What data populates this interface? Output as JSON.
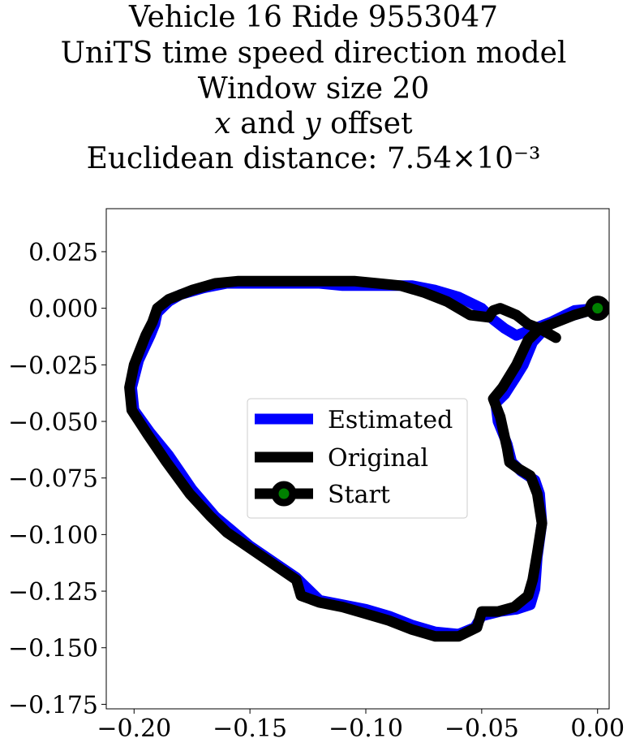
{
  "chart_data": {
    "type": "line",
    "title_lines": [
      "Vehicle 16 Ride 9553047",
      "UniTS time speed direction model",
      "Window size 20",
      "x and y offset",
      "Euclidean distance: 7.54×10⁻³"
    ],
    "title_math_1": "x",
    "title_text_and": " and ",
    "title_math_2": "y",
    "title_text_offset": " offset",
    "xlim": [
      -0.212,
      0.005
    ],
    "ylim": [
      -0.177,
      0.044
    ],
    "x_ticks": [
      -0.2,
      -0.15,
      -0.1,
      -0.05,
      0.0
    ],
    "x_tick_labels": [
      "−0.20",
      "−0.15",
      "−0.10",
      "−0.05",
      "0.00"
    ],
    "y_ticks": [
      0.025,
      0.0,
      -0.025,
      -0.05,
      -0.075,
      -0.1,
      -0.125,
      -0.15,
      -0.175
    ],
    "y_tick_labels": [
      "0.025",
      "0.000",
      "−0.025",
      "−0.050",
      "−0.075",
      "−0.100",
      "−0.125",
      "−0.150",
      "−0.175"
    ],
    "legend_position": "center",
    "series": [
      {
        "name": "Estimated",
        "color": "#0000ff",
        "x": [
          0.0,
          -0.01,
          -0.02,
          -0.028,
          -0.032,
          -0.035,
          -0.04,
          -0.044,
          -0.043,
          -0.039,
          -0.037,
          -0.033,
          -0.027,
          -0.025,
          -0.024,
          -0.026,
          -0.027,
          -0.029,
          -0.035,
          -0.042,
          -0.05,
          -0.053,
          -0.06,
          -0.07,
          -0.08,
          -0.09,
          -0.1,
          -0.11,
          -0.12,
          -0.13,
          -0.14,
          -0.15,
          -0.158,
          -0.165,
          -0.175,
          -0.185,
          -0.193,
          -0.2,
          -0.201,
          -0.198,
          -0.193,
          -0.191,
          -0.19,
          -0.185,
          -0.18,
          -0.17,
          -0.16,
          -0.15,
          -0.14,
          -0.13,
          -0.12,
          -0.11,
          -0.1,
          -0.09,
          -0.08,
          -0.07,
          -0.06,
          -0.05,
          -0.045,
          -0.04,
          -0.035,
          -0.03,
          -0.02,
          -0.01,
          0.0
        ],
        "y": [
          0.0,
          -0.001,
          -0.006,
          -0.015,
          -0.025,
          -0.03,
          -0.038,
          -0.042,
          -0.05,
          -0.06,
          -0.068,
          -0.072,
          -0.076,
          -0.082,
          -0.095,
          -0.11,
          -0.124,
          -0.131,
          -0.133,
          -0.134,
          -0.136,
          -0.141,
          -0.144,
          -0.143,
          -0.14,
          -0.136,
          -0.133,
          -0.131,
          -0.129,
          -0.119,
          -0.112,
          -0.105,
          -0.098,
          -0.092,
          -0.08,
          -0.065,
          -0.055,
          -0.045,
          -0.035,
          -0.023,
          -0.012,
          -0.007,
          -0.002,
          0.003,
          0.006,
          0.009,
          0.011,
          0.011,
          0.011,
          0.011,
          0.011,
          0.01,
          0.01,
          0.01,
          0.01,
          0.008,
          0.005,
          0.0,
          -0.005,
          -0.009,
          -0.012,
          -0.01,
          -0.006,
          -0.003,
          0.0
        ]
      },
      {
        "name": "Original",
        "color": "#000000",
        "x": [
          0.0,
          -0.01,
          -0.02,
          -0.025,
          -0.03,
          -0.035,
          -0.041,
          -0.045,
          -0.042,
          -0.039,
          -0.038,
          -0.034,
          -0.029,
          -0.026,
          -0.024,
          -0.026,
          -0.028,
          -0.03,
          -0.036,
          -0.043,
          -0.05,
          -0.052,
          -0.06,
          -0.07,
          -0.08,
          -0.09,
          -0.1,
          -0.11,
          -0.12,
          -0.128,
          -0.13,
          -0.14,
          -0.15,
          -0.16,
          -0.167,
          -0.176,
          -0.186,
          -0.194,
          -0.201,
          -0.202,
          -0.2,
          -0.195,
          -0.192,
          -0.19,
          -0.185,
          -0.175,
          -0.165,
          -0.155,
          -0.145,
          -0.135,
          -0.125,
          -0.115,
          -0.105,
          -0.095,
          -0.085,
          -0.075,
          -0.065,
          -0.055,
          -0.047,
          -0.045,
          -0.042,
          -0.035,
          -0.03,
          -0.025,
          -0.018
        ],
        "y": [
          0.0,
          -0.003,
          -0.007,
          -0.009,
          -0.014,
          -0.025,
          -0.035,
          -0.04,
          -0.048,
          -0.062,
          -0.068,
          -0.071,
          -0.074,
          -0.082,
          -0.095,
          -0.108,
          -0.12,
          -0.127,
          -0.132,
          -0.134,
          -0.134,
          -0.141,
          -0.145,
          -0.145,
          -0.142,
          -0.138,
          -0.135,
          -0.132,
          -0.13,
          -0.127,
          -0.12,
          -0.113,
          -0.106,
          -0.099,
          -0.092,
          -0.082,
          -0.068,
          -0.056,
          -0.045,
          -0.035,
          -0.025,
          -0.012,
          -0.006,
          0.0,
          0.004,
          0.008,
          0.011,
          0.012,
          0.012,
          0.012,
          0.012,
          0.012,
          0.012,
          0.011,
          0.01,
          0.007,
          0.003,
          -0.003,
          -0.004,
          -0.001,
          0.0,
          -0.003,
          -0.007,
          -0.009,
          -0.013
        ]
      }
    ],
    "start_point": {
      "name": "Start",
      "x": 0.0,
      "y": 0.0,
      "marker_edge": "#000000",
      "marker_fill": "#008000"
    }
  }
}
